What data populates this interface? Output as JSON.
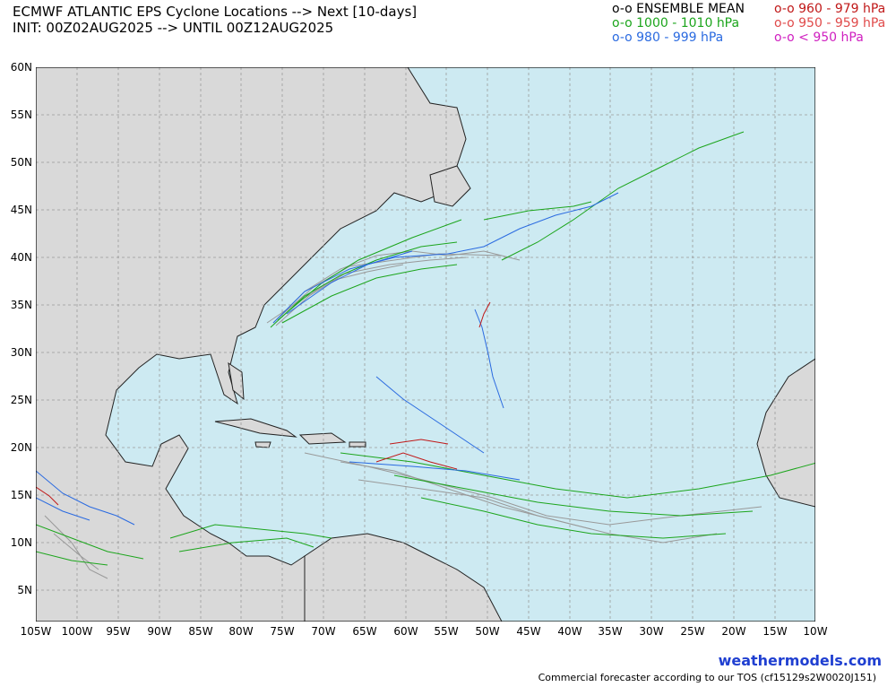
{
  "header": {
    "title": "ECMWF ATLANTIC EPS Cyclone Locations --> Next [10-days]",
    "init": "INIT: 00Z02AUG2025 --> UNTIL 00Z12AUG2025"
  },
  "legend": [
    {
      "label": "o-o ENSEMBLE MEAN",
      "color": "#000000"
    },
    {
      "label": "o-o 960 - 979 hPa",
      "color": "#c01818"
    },
    {
      "label": "o-o 1000 - 1010 hPa",
      "color": "#1ca51c"
    },
    {
      "label": "o-o 950 - 959 hPa",
      "color": "#e04a4a"
    },
    {
      "label": "o-o 980 - 999 hPa",
      "color": "#2a6ae0"
    },
    {
      "label": "o-o < 950 hPa",
      "color": "#d020c0"
    }
  ],
  "map": {
    "ocean_color": "#cdeaf2",
    "land_color": "#d9d9d9",
    "grid_color": "#999999",
    "lat_labels": [
      "60N",
      "55N",
      "50N",
      "45N",
      "40N",
      "35N",
      "30N",
      "25N",
      "20N",
      "15N",
      "10N",
      "5N"
    ],
    "lon_labels": [
      "105W",
      "100W",
      "95W",
      "90W",
      "85W",
      "80W",
      "75W",
      "70W",
      "65W",
      "60W",
      "55W",
      "50W",
      "45W",
      "40W",
      "35W",
      "30W",
      "25W",
      "20W",
      "15W",
      "10W"
    ]
  },
  "footer": {
    "brand": "weathermodels.com",
    "tos": "Commercial forecaster according to our TOS (cf15129s2W0020J151)"
  }
}
